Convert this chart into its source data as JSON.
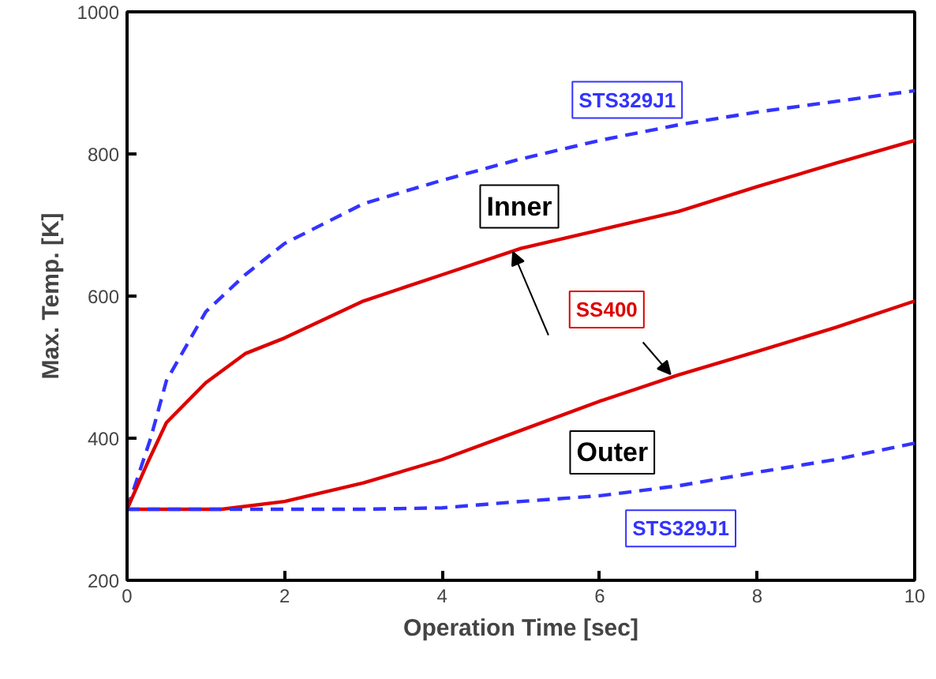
{
  "chart_data": {
    "type": "line",
    "xlabel": "Operation Time [sec]",
    "ylabel": "Max. Temp. [K]",
    "xlim": [
      0,
      10
    ],
    "ylim": [
      200,
      1000
    ],
    "xticks": [
      0,
      2,
      4,
      6,
      8,
      10
    ],
    "yticks": [
      200,
      400,
      600,
      800,
      1000
    ],
    "grid": false,
    "series": [
      {
        "color": "#3333ff",
        "line_style": "dashed",
        "x": [
          0,
          0.3,
          0.5,
          1,
          1.5,
          2,
          3,
          4,
          5,
          6,
          7,
          8,
          9,
          10
        ],
        "values": [
          300,
          400,
          481,
          578,
          630,
          674,
          730,
          763,
          793,
          819,
          841,
          859,
          874,
          889
        ]
      },
      {
        "color": "#dd0000",
        "line_style": "solid",
        "x": [
          0,
          0.25,
          0.5,
          1,
          1.5,
          2,
          3,
          4,
          5,
          6,
          7,
          8,
          9,
          10
        ],
        "values": [
          300,
          363,
          422,
          478,
          519,
          541,
          593,
          630,
          667,
          693,
          719,
          754,
          787,
          819
        ]
      },
      {
        "color": "#dd0000",
        "line_style": "solid",
        "x": [
          0,
          1.2,
          2,
          3,
          4,
          5,
          6,
          7,
          8,
          9,
          10
        ],
        "values": [
          300,
          300,
          311,
          337,
          370,
          411,
          452,
          489,
          522,
          556,
          593
        ]
      },
      {
        "color": "#3333ff",
        "line_style": "dashed",
        "x": [
          0,
          3,
          4,
          5,
          6,
          7,
          8,
          9,
          10
        ],
        "values": [
          300,
          300,
          302,
          311,
          319,
          333,
          352,
          370,
          393
        ]
      }
    ],
    "annotations": [
      "STS329J1",
      "Inner",
      {
        "text": "SS400",
        "x": 6.9,
        "y": 490
      },
      "Outer",
      "STS329J1"
    ]
  }
}
